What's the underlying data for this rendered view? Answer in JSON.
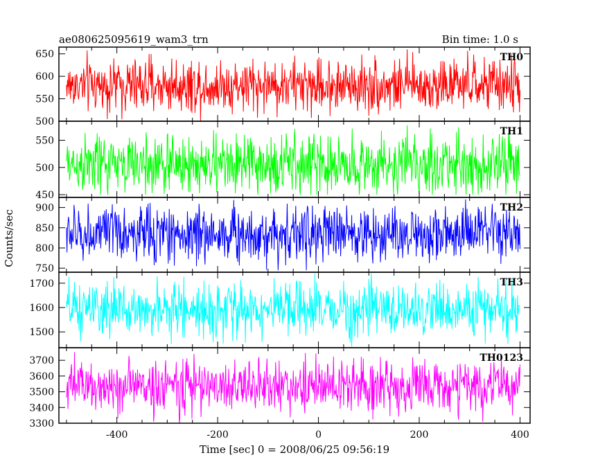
{
  "chart_data": {
    "type": "line",
    "title": "ae080625095619_wam3_trn",
    "subtitle": "Bin time: 1.0 s",
    "xlabel": "Time [sec] 0 = 2008/06/25 09:56:19",
    "ylabel": "Counts/sec",
    "xlim": [
      -515,
      420
    ],
    "xticks": [
      -400,
      -200,
      0,
      200,
      400
    ],
    "x_range": [
      -500,
      400
    ],
    "bin_time_s": 1.0,
    "panels": [
      {
        "name": "TH0",
        "color": "#ff0000",
        "ylim": [
          500,
          665
        ],
        "yticks": [
          500,
          550,
          600,
          650
        ],
        "mean": 580,
        "spread": 30,
        "min": 500,
        "max": 660
      },
      {
        "name": "TH1",
        "color": "#00ff00",
        "ylim": [
          445,
          585
        ],
        "yticks": [
          450,
          500,
          550
        ],
        "mean": 505,
        "spread": 28,
        "min": 450,
        "max": 580
      },
      {
        "name": "TH2",
        "color": "#0000ff",
        "ylim": [
          740,
          925
        ],
        "yticks": [
          750,
          800,
          850,
          900
        ],
        "mean": 835,
        "spread": 35,
        "min": 745,
        "max": 920
      },
      {
        "name": "TH3",
        "color": "#00ffff",
        "ylim": [
          1435,
          1745
        ],
        "yticks": [
          1500,
          1600,
          1700
        ],
        "mean": 1590,
        "spread": 55,
        "min": 1440,
        "max": 1740
      },
      {
        "name": "TH0123",
        "color": "#ff00ff",
        "ylim": [
          3300,
          3780
        ],
        "yticks": [
          3300,
          3400,
          3500,
          3600,
          3700
        ],
        "mean": 3535,
        "spread": 85,
        "min": 3300,
        "max": 3760
      }
    ]
  }
}
